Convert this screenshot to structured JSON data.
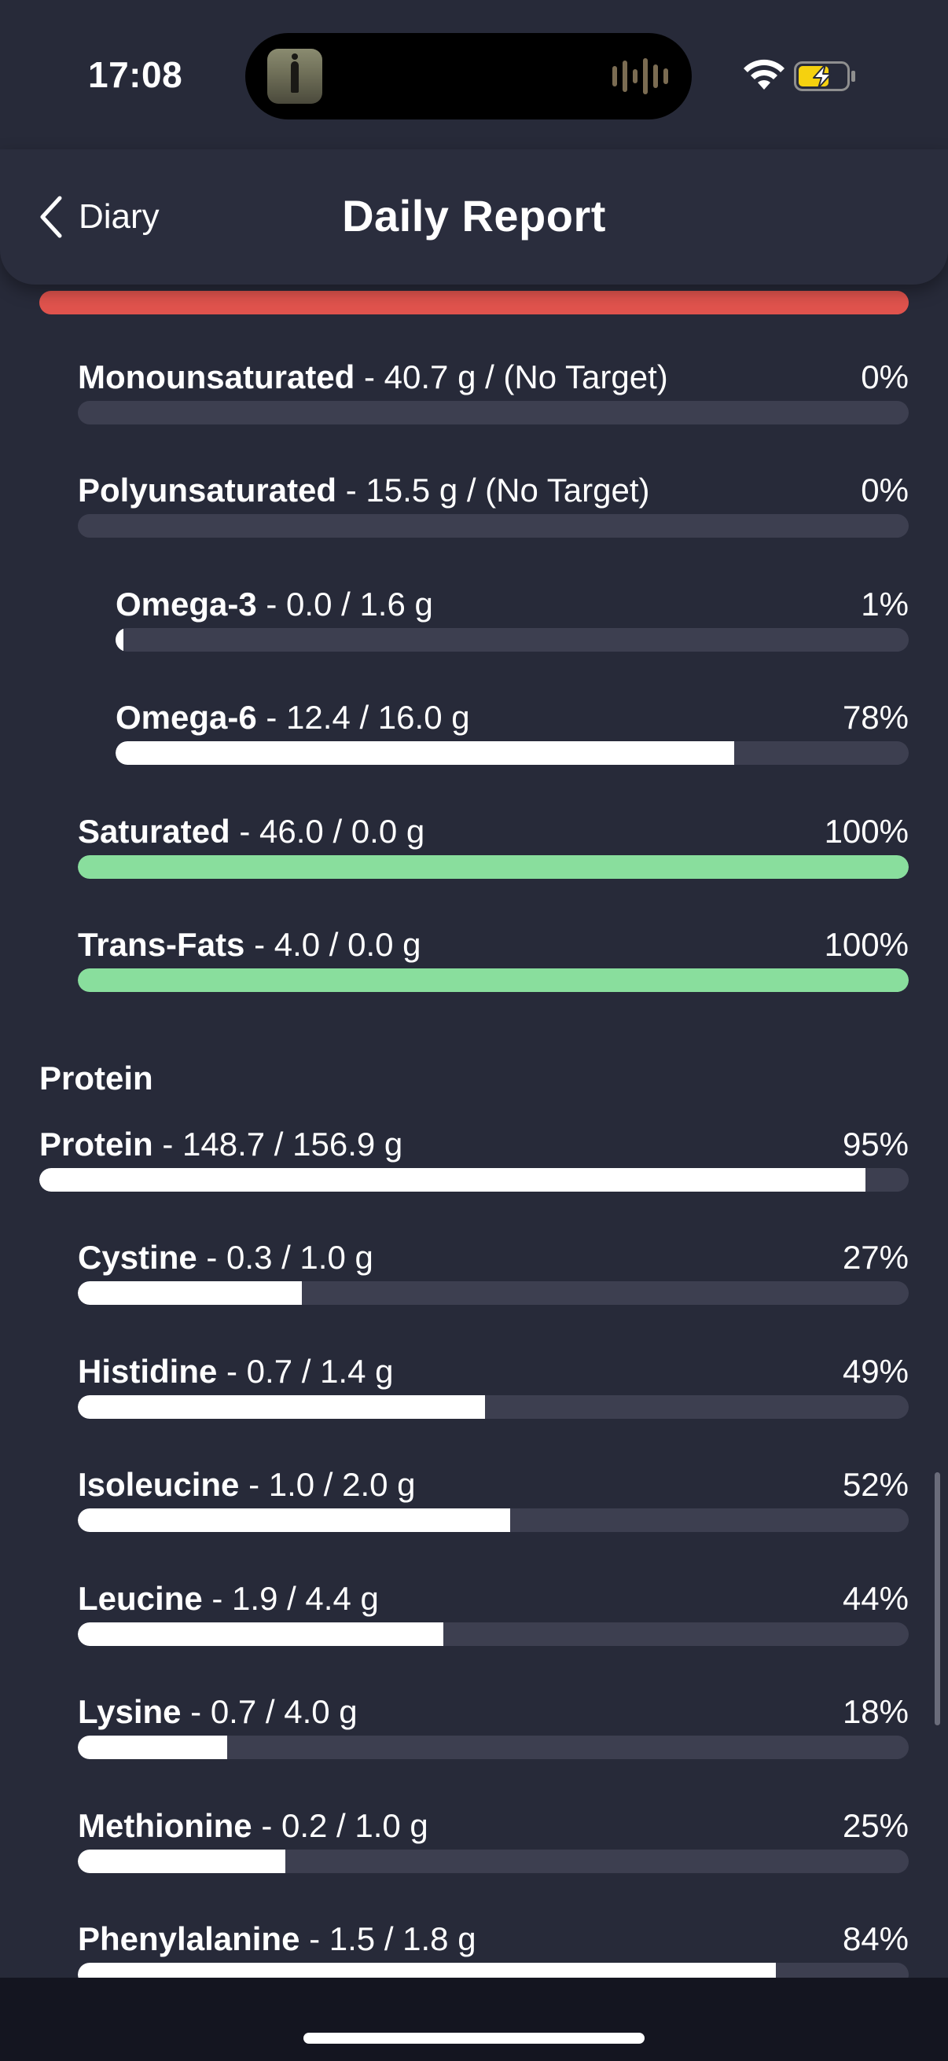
{
  "status_bar": {
    "time": "17:08"
  },
  "header": {
    "back_label": "Diary",
    "title": "Daily Report"
  },
  "colors": {
    "background": "#272a39",
    "track": "#3d3f50",
    "fill": "#ffffff",
    "complete": "#89de9d",
    "over": "#e0534d"
  },
  "fats": [
    {
      "name": "Monounsaturated",
      "detail": " - 40.7 g / (No Target)",
      "percent_label": "0%",
      "fill": 0,
      "color": "white"
    },
    {
      "name": "Polyunsaturated",
      "detail": " - 15.5 g / (No Target)",
      "percent_label": "0%",
      "fill": 0,
      "color": "white"
    },
    {
      "name": "Omega-3",
      "detail": " - 0.0 / 1.6 g",
      "percent_label": "1%",
      "fill": 0.01,
      "color": "white"
    },
    {
      "name": "Omega-6",
      "detail": " - 12.4 / 16.0 g",
      "percent_label": "78%",
      "fill": 0.78,
      "color": "white"
    },
    {
      "name": "Saturated",
      "detail": " - 46.0 / 0.0 g",
      "percent_label": "100%",
      "fill": 1.0,
      "color": "green"
    },
    {
      "name": "Trans-Fats",
      "detail": " - 4.0 / 0.0 g",
      "percent_label": "100%",
      "fill": 1.0,
      "color": "green"
    }
  ],
  "protein_section": {
    "title": "Protein",
    "total": {
      "name": "Protein",
      "detail": " - 148.7 / 156.9 g",
      "percent_label": "95%",
      "fill": 0.95,
      "color": "white"
    },
    "items": [
      {
        "name": "Cystine",
        "detail": " - 0.3 / 1.0 g",
        "percent_label": "27%",
        "fill": 0.27,
        "color": "white"
      },
      {
        "name": "Histidine",
        "detail": " - 0.7 / 1.4 g",
        "percent_label": "49%",
        "fill": 0.49,
        "color": "white"
      },
      {
        "name": "Isoleucine",
        "detail": " - 1.0 / 2.0 g",
        "percent_label": "52%",
        "fill": 0.52,
        "color": "white"
      },
      {
        "name": "Leucine",
        "detail": " - 1.9 / 4.4 g",
        "percent_label": "44%",
        "fill": 0.44,
        "color": "white"
      },
      {
        "name": "Lysine",
        "detail": " - 0.7 / 4.0 g",
        "percent_label": "18%",
        "fill": 0.18,
        "color": "white"
      },
      {
        "name": "Methionine",
        "detail": " - 0.2 / 1.0 g",
        "percent_label": "25%",
        "fill": 0.25,
        "color": "white"
      },
      {
        "name": "Phenylalanine",
        "detail": " - 1.5 / 1.8 g",
        "percent_label": "84%",
        "fill": 0.84,
        "color": "white"
      }
    ]
  }
}
